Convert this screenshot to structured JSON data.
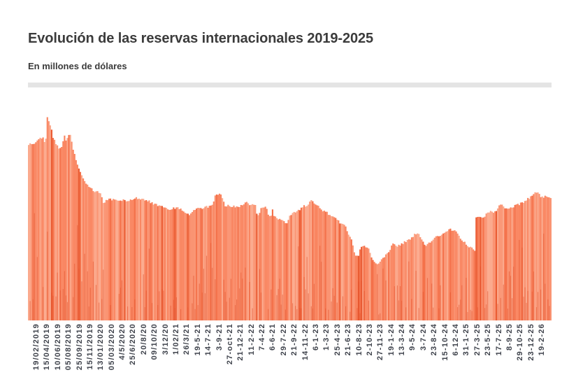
{
  "page": {
    "title": "Evolución de las reservas internacionales 2019-2025",
    "subtitle": "En millones de dólares"
  },
  "colors": {
    "background": "#ffffff",
    "title_text": "#3b3b3b",
    "divider": "#e4e4e4",
    "axis_label_text": "#3f434c",
    "bar_light2": "#FBA98C",
    "bar_light": "#FA9473",
    "bar_base": "#F98560",
    "bar_dark": "#F4714A",
    "bar_deep": "#EA5C33",
    "bar_streak": "#E24E28"
  },
  "chart_data": {
    "type": "bar",
    "title": "Evolución de las reservas internacionales 2019-2025",
    "subtitle": "En millones de dólares",
    "unit": "millones de dólares",
    "x_axis": {
      "labels_rotated_vertical": true,
      "tick_labels": [
        "19/02/2019",
        "15/04/2019",
        "10/06/2019",
        "05/08/2019",
        "25/09/2019",
        "15/11/2019",
        "13/01/2020",
        "05/03/2020",
        "4/5/2020",
        "25/6/2020",
        "20/8/20",
        "09/10/20",
        "3/12/20",
        "1/02/21",
        "26/3/21",
        "19-5-21",
        "14-7-21",
        "3-9-21",
        "27-oct-21",
        "21-12-21",
        "11-2-22",
        "7-4-22",
        "6-6-21",
        "29-7-22",
        "21-9-22",
        "14-11-22",
        "6-1-23",
        "1-3-23",
        "25-4-23",
        "21-6-23",
        "10-8-23",
        "2-10-23",
        "27-11-23",
        "19-1-24",
        "13-3-24",
        "9-5-24",
        "3-7-24",
        "23-8-24",
        "15-10-24",
        "6-12-24",
        "31-1-25",
        "27-3-25",
        "23-5-25",
        "17-7-25",
        "8-9-25",
        "29-10-25",
        "23-12-25",
        "19-2-26"
      ]
    },
    "y_axis": {
      "visible": false,
      "note": "El gráfico original no muestra escala numérica en el eje Y; las alturas son relativas al máximo"
    },
    "n_bars_approx": 365,
    "series": [
      {
        "name": "Reservas internacionales",
        "points_format": "[posicion_x_porcentaje_del_ancho, altura_porcentaje_del_maximo]",
        "points_pct": [
          [
            0,
            84.8
          ],
          [
            0.8,
            85.3
          ],
          [
            1.6,
            85.8
          ],
          [
            2.3,
            88.2
          ],
          [
            2.8,
            88.4
          ],
          [
            3.1,
            86.1
          ],
          [
            3.35,
            85.5
          ],
          [
            3.55,
            92.0
          ],
          [
            3.75,
            100.0
          ],
          [
            3.95,
            96.8
          ],
          [
            4.15,
            95.2
          ],
          [
            4.45,
            93.0
          ],
          [
            4.7,
            88.5
          ],
          [
            5.2,
            86.1
          ],
          [
            5.6,
            84.8
          ],
          [
            6.0,
            83.1
          ],
          [
            6.3,
            82.8
          ],
          [
            6.6,
            84.5
          ],
          [
            6.85,
            88.5
          ],
          [
            7.1,
            89.2
          ],
          [
            7.35,
            85.5
          ],
          [
            7.6,
            88.9
          ],
          [
            7.9,
            89.9
          ],
          [
            8.15,
            88.8
          ],
          [
            8.4,
            85.5
          ],
          [
            8.7,
            82.1
          ],
          [
            9.0,
            79.7
          ],
          [
            9.35,
            76.4
          ],
          [
            9.75,
            73.6
          ],
          [
            10.3,
            70.3
          ],
          [
            10.8,
            67.0
          ],
          [
            11.35,
            65.2
          ],
          [
            12.0,
            63.5
          ],
          [
            12.7,
            62.5
          ],
          [
            13.35,
            61.8
          ],
          [
            14.0,
            61.1
          ],
          [
            14.4,
            56.8
          ],
          [
            14.8,
            57.8
          ],
          [
            15.35,
            58.8
          ],
          [
            16.0,
            58.4
          ],
          [
            16.7,
            57.8
          ],
          [
            17.35,
            57.4
          ],
          [
            18.0,
            58.1
          ],
          [
            18.7,
            57.8
          ],
          [
            19.35,
            57.4
          ],
          [
            20.0,
            58.8
          ],
          [
            20.7,
            59.1
          ],
          [
            21.35,
            58.8
          ],
          [
            22.0,
            58.4
          ],
          [
            22.7,
            58.1
          ],
          [
            23.35,
            57.1
          ],
          [
            24.0,
            56.4
          ],
          [
            24.7,
            55.7
          ],
          [
            25.35,
            55.1
          ],
          [
            26.0,
            54.4
          ],
          [
            26.7,
            53.7
          ],
          [
            27.35,
            54.1
          ],
          [
            28.0,
            54.4
          ],
          [
            29.35,
            53.7
          ],
          [
            30.0,
            51.7
          ],
          [
            30.45,
            51.0
          ],
          [
            30.95,
            51.4
          ],
          [
            31.5,
            52.7
          ],
          [
            32.0,
            53.4
          ],
          [
            32.7,
            54.1
          ],
          [
            33.35,
            54.4
          ],
          [
            34.0,
            54.7
          ],
          [
            34.7,
            55.1
          ],
          [
            35.35,
            56.8
          ],
          [
            35.75,
            60.1
          ],
          [
            36.3,
            60.8
          ],
          [
            36.8,
            60.5
          ],
          [
            37.1,
            59.1
          ],
          [
            37.6,
            55.7
          ],
          [
            38.7,
            55.1
          ],
          [
            40.0,
            54.7
          ],
          [
            40.7,
            55.4
          ],
          [
            41.1,
            56.1
          ],
          [
            41.5,
            57.4
          ],
          [
            41.9,
            56.4
          ],
          [
            42.3,
            56.1
          ],
          [
            43.0,
            56.1
          ],
          [
            43.4,
            55.7
          ],
          [
            43.7,
            51.0
          ],
          [
            44.1,
            51.4
          ],
          [
            44.5,
            54.4
          ],
          [
            45.1,
            55.1
          ],
          [
            45.7,
            53.4
          ],
          [
            46.0,
            50.0
          ],
          [
            46.4,
            50.0
          ],
          [
            46.7,
            53.4
          ],
          [
            47.1,
            50.0
          ],
          [
            47.6,
            49.3
          ],
          [
            48.3,
            48.6
          ],
          [
            48.8,
            47.6
          ],
          [
            49.5,
            47.3
          ],
          [
            49.9,
            50.0
          ],
          [
            50.5,
            51.7
          ],
          [
            51.1,
            52.4
          ],
          [
            51.6,
            53.0
          ],
          [
            52.0,
            53.7
          ],
          [
            52.5,
            55.1
          ],
          [
            53.1,
            55.4
          ],
          [
            53.5,
            56.1
          ],
          [
            53.9,
            57.4
          ],
          [
            54.1,
            57.8
          ],
          [
            54.5,
            57.4
          ],
          [
            54.9,
            56.4
          ],
          [
            55.3,
            55.4
          ],
          [
            55.9,
            54.1
          ],
          [
            56.3,
            53.0
          ],
          [
            57.1,
            52.0
          ],
          [
            57.6,
            51.0
          ],
          [
            58.1,
            50.0
          ],
          [
            58.7,
            49.3
          ],
          [
            59.2,
            48.3
          ],
          [
            59.7,
            47.0
          ],
          [
            60.3,
            45.9
          ],
          [
            60.8,
            44.6
          ],
          [
            61.3,
            41.5
          ],
          [
            61.9,
            38.9
          ],
          [
            62.4,
            32.1
          ],
          [
            63.1,
            31.1
          ],
          [
            63.6,
            35.1
          ],
          [
            64.4,
            35.8
          ],
          [
            65.1,
            35.1
          ],
          [
            65.6,
            30.4
          ],
          [
            66.0,
            28.4
          ],
          [
            66.9,
            27.4
          ],
          [
            67.7,
            30.1
          ],
          [
            68.4,
            31.8
          ],
          [
            69.1,
            34.1
          ],
          [
            69.6,
            37.2
          ],
          [
            70.3,
            35.8
          ],
          [
            71.1,
            36.5
          ],
          [
            72.0,
            37.8
          ],
          [
            73.1,
            39.2
          ],
          [
            73.7,
            41.2
          ],
          [
            74.3,
            42.2
          ],
          [
            74.9,
            40.5
          ],
          [
            75.6,
            36.8
          ],
          [
            76.0,
            36.1
          ],
          [
            76.9,
            38.2
          ],
          [
            77.7,
            39.9
          ],
          [
            78.7,
            41.2
          ],
          [
            79.6,
            42.6
          ],
          [
            80.7,
            43.9
          ],
          [
            81.6,
            43.6
          ],
          [
            82.3,
            41.6
          ],
          [
            82.7,
            39.2
          ],
          [
            83.5,
            37.5
          ],
          [
            84.4,
            35.5
          ],
          [
            85.1,
            34.1
          ],
          [
            85.5,
            33.1
          ],
          [
            85.62,
            50.3
          ],
          [
            86.1,
            50.7
          ],
          [
            86.9,
            49.3
          ],
          [
            87.6,
            51.4
          ],
          [
            88.4,
            52.4
          ],
          [
            89.3,
            52.7
          ],
          [
            90.0,
            55.4
          ],
          [
            90.7,
            55.7
          ],
          [
            91.1,
            54.4
          ],
          [
            91.6,
            53.4
          ],
          [
            92.3,
            54.4
          ],
          [
            93.1,
            55.4
          ],
          [
            93.9,
            56.1
          ],
          [
            94.7,
            57.4
          ],
          [
            95.5,
            58.8
          ],
          [
            96.3,
            60.1
          ],
          [
            96.9,
            62.5
          ],
          [
            97.5,
            61.1
          ],
          [
            97.9,
            60.1
          ],
          [
            98.3,
            59.8
          ],
          [
            98.7,
            59.5
          ],
          [
            99.1,
            60.5
          ],
          [
            99.5,
            59.5
          ],
          [
            99.9,
            59.1
          ]
        ]
      }
    ],
    "shape_notes": {
      "peak_x_pct": 3.75,
      "peak_near_label": "15/04/2019",
      "trough_x_pct": 66.9,
      "trough_near_label": "27-11-23",
      "step_jump_x_pct": 85.6,
      "step_jump_near_label": "27-3-25"
    }
  }
}
